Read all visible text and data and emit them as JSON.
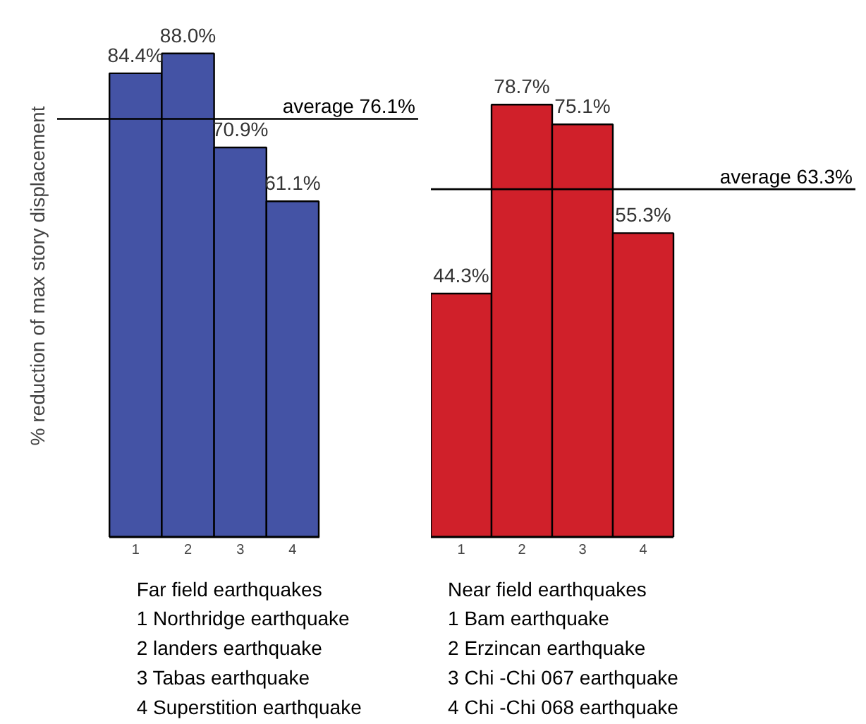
{
  "chart_data": [
    {
      "type": "bar",
      "categories": [
        "1",
        "2",
        "3",
        "4"
      ],
      "values": [
        84.4,
        88.0,
        70.9,
        61.1
      ],
      "value_labels": [
        "84.4%",
        "88.0%",
        "70.9%",
        "61.1%"
      ],
      "color": "#4453a5",
      "ylabel": "% reduction of max story displacement",
      "xlabel": "Far field earthquakes",
      "grid": false,
      "tick_labels": "x",
      "ref_lines": [
        {
          "axis": "y",
          "value": 76.1,
          "label": "average 76.1%"
        }
      ],
      "annotations": [
        "1 Northridge earthquake",
        "2 landers earthquake",
        "3 Tabas earthquake",
        "4 Superstition earthquake"
      ]
    },
    {
      "type": "bar",
      "categories": [
        "1",
        "2",
        "3",
        "4"
      ],
      "values": [
        44.3,
        78.7,
        75.1,
        55.3
      ],
      "value_labels": [
        "44.3%",
        "78.7%",
        "75.1%",
        "55.3%"
      ],
      "color": "#d0202a",
      "xlabel": "Near field earthquakes",
      "grid": false,
      "tick_labels": "x",
      "ref_lines": [
        {
          "axis": "y",
          "value": 63.3,
          "label": "average 63.3%"
        }
      ],
      "annotations": [
        "1 Bam earthquake",
        "2 Erzincan earthquake",
        "3 Chi -Chi 067 earthquake",
        "4 Chi -Chi 068 earthquake"
      ]
    }
  ]
}
